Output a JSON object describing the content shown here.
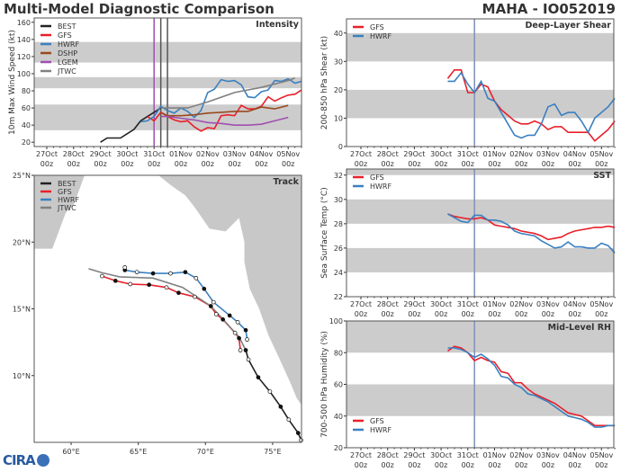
{
  "header": {
    "left_title": "Multi-Model Diagnostic Comparison",
    "right_title": "MAHA - IO052019"
  },
  "logo": {
    "text": "CIRA"
  },
  "colors": {
    "BEST": "#222222",
    "GFS": "#e8202a",
    "HWRF": "#3a80c0",
    "DSHP": "#9a4a20",
    "LGEM": "#a050b0",
    "JTWC": "#808080",
    "band": "#cccccc",
    "land": "#c8c8c8",
    "init_line": "#8090b8"
  },
  "date_ticks": [
    "27Oct",
    "28Oct",
    "29Oct",
    "30Oct",
    "31Oct",
    "01Nov",
    "02Nov",
    "03Nov",
    "04Nov",
    "05Nov"
  ],
  "hour_tick": "00z",
  "chart_data": [
    {
      "panel": "intensity",
      "type": "line",
      "title": "Intensity",
      "ylabel": "10m Max Wind Speed (kt)",
      "ylim": [
        15,
        165
      ],
      "yticks": [
        "20",
        "40",
        "60",
        "80",
        "100",
        "120",
        "140",
        "160"
      ],
      "bands": [
        [
          34,
          64
        ],
        [
          83,
          96
        ],
        [
          113,
          137
        ]
      ],
      "vlines": [
        {
          "x": "10-31 00",
          "color": "#a050b0"
        },
        {
          "x": "10-31 06",
          "color": "#555555"
        },
        {
          "x": "10-31 12",
          "color": "#555555"
        }
      ],
      "legend": [
        "BEST",
        "GFS",
        "HWRF",
        "DSHP",
        "LGEM",
        "JTWC"
      ],
      "series": [
        {
          "name": "BEST",
          "x": [
            "10-29 00",
            "10-29 06",
            "10-29 12",
            "10-29 18",
            "10-30 00",
            "10-30 06",
            "10-30 12",
            "10-30 18",
            "10-31 00",
            "10-31 06"
          ],
          "values": [
            20,
            25,
            25,
            25,
            30,
            35,
            45,
            50,
            55,
            60
          ]
        },
        {
          "name": "GFS",
          "x": [
            "10-30 18",
            "10-31 00",
            "10-31 06",
            "10-31 12",
            "10-31 18",
            "11-01 00",
            "11-01 06",
            "11-01 12",
            "11-01 18",
            "11-02 00",
            "11-02 06",
            "11-02 12",
            "11-02 18",
            "11-03 00",
            "11-03 06",
            "11-03 12",
            "11-03 18",
            "11-04 00",
            "11-04 06",
            "11-04 12",
            "11-04 18",
            "11-05 00",
            "11-05 06",
            "11-05 12"
          ],
          "values": [
            50,
            45,
            55,
            50,
            46,
            44,
            45,
            38,
            33,
            37,
            36,
            51,
            52,
            51,
            63,
            59,
            59,
            62,
            73,
            68,
            72,
            75,
            76,
            81
          ]
        },
        {
          "name": "HWRF",
          "x": [
            "10-30 12",
            "10-30 18",
            "10-31 00",
            "10-31 06",
            "10-31 12",
            "10-31 18",
            "11-01 00",
            "11-01 06",
            "11-01 12",
            "11-01 18",
            "11-02 00",
            "11-02 06",
            "11-02 12",
            "11-02 18",
            "11-03 00",
            "11-03 06",
            "11-03 12",
            "11-03 18",
            "11-04 00",
            "11-04 06",
            "11-04 12",
            "11-04 18",
            "11-05 00",
            "11-05 06",
            "11-05 12"
          ],
          "values": [
            44,
            45,
            50,
            62,
            57,
            54,
            60,
            56,
            49,
            57,
            78,
            82,
            93,
            91,
            92,
            87,
            73,
            72,
            79,
            81,
            92,
            91,
            94,
            89,
            91
          ]
        },
        {
          "name": "DSHP",
          "x": [
            "10-31 06",
            "10-31 12",
            "11-01 00",
            "11-01 12",
            "11-02 00",
            "11-02 12",
            "11-03 00",
            "11-03 12",
            "11-04 00",
            "11-04 12",
            "11-05 00"
          ],
          "values": [
            55,
            51,
            51,
            52,
            54,
            55,
            56,
            56,
            61,
            59,
            63
          ]
        },
        {
          "name": "LGEM",
          "x": [
            "10-31 06",
            "10-31 12",
            "11-01 00",
            "11-01 12",
            "11-02 00",
            "11-02 12",
            "11-03 00",
            "11-03 12",
            "11-04 00",
            "11-04 12",
            "11-05 00"
          ],
          "values": [
            50,
            50,
            48,
            46,
            43,
            42,
            40,
            40,
            41,
            45,
            49
          ]
        },
        {
          "name": "JTWC",
          "x": [
            "10-31 06",
            "10-31 12",
            "11-01 06",
            "11-02 00",
            "11-03 00",
            "11-04 00",
            "11-05 00",
            "11-05 06"
          ],
          "values": [
            60,
            60,
            60,
            67,
            78,
            84,
            92,
            95
          ]
        }
      ]
    },
    {
      "panel": "shear",
      "type": "line",
      "title": "Deep-Layer Shear",
      "ylabel": "200-850 hPa Shear (kt)",
      "ylim": [
        0,
        45
      ],
      "yticks": [
        "0",
        "10",
        "20",
        "30",
        "40"
      ],
      "bands": [
        [
          10,
          20
        ],
        [
          30,
          40
        ]
      ],
      "vlines": [
        {
          "x": "10-31 06",
          "color": "#8090b8"
        }
      ],
      "legend": [
        "GFS",
        "HWRF"
      ],
      "series": [
        {
          "name": "GFS",
          "values": [
            24,
            27,
            27,
            19,
            19,
            22,
            21,
            16,
            13,
            11,
            9,
            8,
            8,
            9,
            8,
            6,
            7,
            7,
            5,
            5,
            5,
            5,
            2,
            4,
            6,
            9
          ]
        },
        {
          "name": "HWRF",
          "values": [
            23,
            23,
            26,
            22,
            19,
            23,
            17,
            16,
            12,
            8,
            4,
            3,
            4,
            4,
            8,
            14,
            15,
            11,
            12,
            12,
            9,
            5,
            10,
            12,
            14,
            17
          ]
        }
      ]
    },
    {
      "panel": "sst",
      "type": "line",
      "title": "SST",
      "ylabel": "Sea Surface Temp (°C)",
      "ylim": [
        22,
        32.5
      ],
      "yticks": [
        "22",
        "24",
        "26",
        "28",
        "30",
        "32"
      ],
      "bands": [
        [
          24,
          26
        ],
        [
          28,
          30
        ],
        [
          32,
          32.5
        ]
      ],
      "vlines": [
        {
          "x": "10-31 06",
          "color": "#8090b8"
        }
      ],
      "legend": [
        "GFS",
        "HWRF"
      ],
      "series": [
        {
          "name": "GFS",
          "values": [
            28.8,
            28.6,
            28.5,
            28.4,
            28.4,
            28.5,
            28.3,
            27.9,
            27.8,
            27.7,
            27.6,
            27.4,
            27.3,
            27.2,
            27.0,
            26.7,
            26.8,
            26.9,
            27.2,
            27.4,
            27.5,
            27.6,
            27.7,
            27.7,
            27.8,
            27.7
          ]
        },
        {
          "name": "HWRF",
          "values": [
            28.8,
            28.5,
            28.2,
            28.1,
            28.7,
            28.7,
            28.3,
            28.3,
            28.2,
            27.9,
            27.4,
            27.2,
            27.1,
            27.0,
            26.6,
            26.3,
            26.0,
            26.1,
            26.5,
            26.1,
            26.1,
            26.0,
            26.0,
            26.4,
            26.2,
            25.6
          ]
        }
      ]
    },
    {
      "panel": "rh",
      "type": "line",
      "title": "Mid-Level RH",
      "ylabel": "700-500 hPa Humidity (%)",
      "ylim": [
        20,
        100
      ],
      "yticks": [
        "20",
        "40",
        "60",
        "80",
        "100"
      ],
      "bands": [
        [
          40,
          60
        ],
        [
          80,
          100
        ]
      ],
      "vlines": [
        {
          "x": "10-31 06",
          "color": "#8090b8"
        }
      ],
      "legend": [
        "GFS",
        "HWRF"
      ],
      "series": [
        {
          "name": "GFS",
          "values": [
            81,
            84,
            83,
            80,
            75,
            77,
            75,
            74,
            68,
            67,
            61,
            61,
            57,
            54,
            52,
            50,
            48,
            45,
            42,
            41,
            40,
            37,
            34,
            34,
            34,
            34
          ]
        },
        {
          "name": "HWRF",
          "values": [
            83,
            83,
            82,
            80,
            77,
            79,
            76,
            72,
            65,
            64,
            60,
            58,
            54,
            53,
            51,
            49,
            46,
            43,
            40,
            39,
            38,
            36,
            33,
            33,
            34,
            34
          ]
        }
      ]
    },
    {
      "panel": "track",
      "type": "line",
      "title": "Track",
      "xlim": [
        57.25,
        77.15
      ],
      "ylim": [
        5,
        25
      ],
      "xticks": [
        "60°E",
        "65°E",
        "70°E",
        "75°E"
      ],
      "yticks": [
        "10°N",
        "15°N",
        "20°N",
        "25°N"
      ],
      "legend": [
        "BEST",
        "GFS",
        "HWRF",
        "JTWC"
      ],
      "series": [
        {
          "name": "BEST",
          "lon": [
            77.12,
            76.9,
            76.2,
            75.6,
            74.8,
            73.93,
            73.2,
            73.0
          ],
          "lat": [
            5.16,
            5.7,
            6.7,
            7.67,
            8.8,
            9.87,
            11.2,
            11.9
          ]
        },
        {
          "name": "GFS",
          "lon": [
            72.6,
            72.5,
            72.2,
            71.3,
            70.8,
            70.4,
            69.2,
            68.0,
            67.1,
            65.8,
            64.4,
            63.3,
            62.3
          ],
          "lat": [
            11.9,
            12.8,
            13.2,
            14.2,
            14.6,
            15.2,
            15.9,
            16.2,
            16.6,
            16.8,
            16.85,
            17.1,
            17.45
          ]
        },
        {
          "name": "HWRF",
          "lon": [
            73.1,
            73.0,
            72.4,
            71.8,
            70.6,
            69.9,
            69.3,
            68.5,
            67.4,
            66.1,
            64.9,
            64.0,
            64.0
          ],
          "lat": [
            12.7,
            13.4,
            14.0,
            14.5,
            15.5,
            16.5,
            17.3,
            17.75,
            17.65,
            17.65,
            17.75,
            17.9,
            18.1
          ]
        },
        {
          "name": "JTWC",
          "lon": [
            73.0,
            72.5,
            70.4,
            68.3,
            66.1,
            63.6,
            62.3,
            61.3
          ],
          "lat": [
            11.9,
            12.9,
            15.2,
            16.6,
            17.3,
            17.4,
            17.7,
            18.0
          ]
        }
      ]
    }
  ]
}
